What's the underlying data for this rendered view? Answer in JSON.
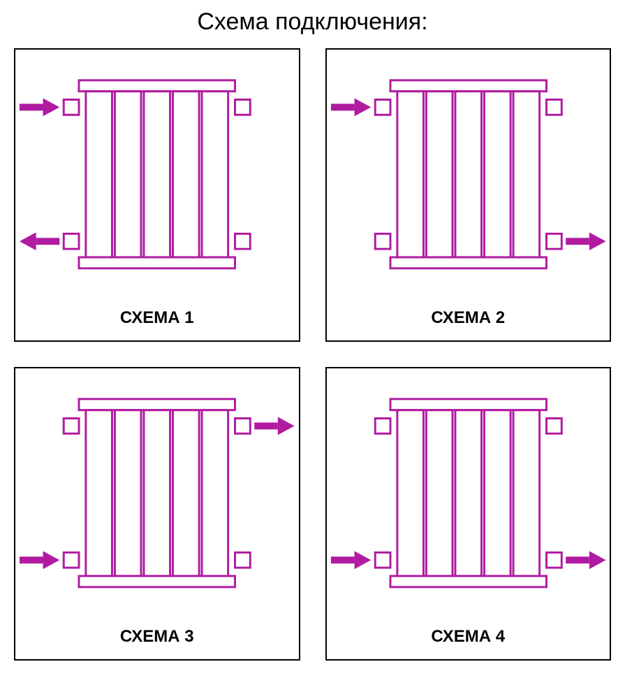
{
  "title": "Схема подключения:",
  "stroke_color": "#b01ba0",
  "fill_color": "#b01ba0",
  "background_color": "#ffffff",
  "border_color": "#000000",
  "stroke_width": 3,
  "radiator": {
    "sections": 5,
    "section_width": 38,
    "section_height": 240,
    "section_gap": 4,
    "top_rail_height": 16,
    "connector_w": 22,
    "connector_h": 22
  },
  "panels": [
    {
      "label": "СХЕМА 1",
      "flows": [
        {
          "side": "left",
          "v": "top",
          "dir": "in"
        },
        {
          "side": "left",
          "v": "bottom",
          "dir": "out"
        }
      ],
      "connectors": [
        {
          "side": "left",
          "v": "top"
        },
        {
          "side": "right",
          "v": "top"
        },
        {
          "side": "left",
          "v": "bottom"
        },
        {
          "side": "right",
          "v": "bottom"
        }
      ]
    },
    {
      "label": "СХЕМА 2",
      "flows": [
        {
          "side": "left",
          "v": "top",
          "dir": "in"
        },
        {
          "side": "right",
          "v": "bottom",
          "dir": "out"
        }
      ],
      "connectors": [
        {
          "side": "left",
          "v": "top"
        },
        {
          "side": "right",
          "v": "top"
        },
        {
          "side": "left",
          "v": "bottom"
        },
        {
          "side": "right",
          "v": "bottom"
        }
      ]
    },
    {
      "label": "СХЕМА 3",
      "flows": [
        {
          "side": "left",
          "v": "bottom",
          "dir": "in"
        },
        {
          "side": "right",
          "v": "top",
          "dir": "out"
        }
      ],
      "connectors": [
        {
          "side": "left",
          "v": "top"
        },
        {
          "side": "right",
          "v": "top"
        },
        {
          "side": "left",
          "v": "bottom"
        },
        {
          "side": "right",
          "v": "bottom"
        }
      ]
    },
    {
      "label": "СХЕМА 4",
      "flows": [
        {
          "side": "left",
          "v": "bottom",
          "dir": "in"
        },
        {
          "side": "right",
          "v": "bottom",
          "dir": "out"
        }
      ],
      "connectors": [
        {
          "side": "left",
          "v": "top"
        },
        {
          "side": "right",
          "v": "top"
        },
        {
          "side": "left",
          "v": "bottom"
        },
        {
          "side": "right",
          "v": "bottom"
        }
      ]
    }
  ]
}
